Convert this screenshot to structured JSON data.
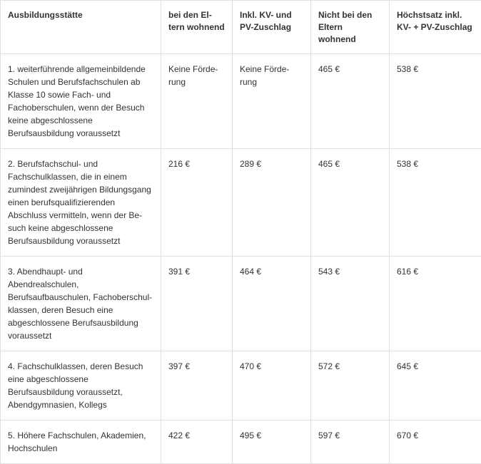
{
  "table": {
    "columns": [
      "Ausbildungsstätte",
      "bei den El­tern woh­nend",
      "Inkl. KV- und PV-Zuschlag",
      "Nicht bei den Eltern wohnend",
      "Höchstsatz inkl. KV- + PV-Zuschlag"
    ],
    "rows": [
      [
        "1. weiterführende allgemeinbildende Schulen und Berufsfachschulen ab Klas­se 10 sowie Fach- und Fachoberschulen, wenn der Besuch keine abgeschlossene Berufsausbildung voraussetzt",
        "Keine Förde­rung",
        "Keine Förde­rung",
        "465 €",
        "538 €"
      ],
      [
        "2. Berufsfachschul- und Fachschulklas­sen, die in einem zumindest zweijährigen Bildungsgang einen berufsqualifizieren­den Abschluss vermitteln, wenn der Be­such keine abgeschlossene Berufsausbil­dung voraussetzt",
        "216 €",
        "289 €",
        "465 €",
        "538 €"
      ],
      [
        "3. Abendhaupt- und Abendrealschulen, Berufsaufbauschulen, Fachoberschul­klassen, deren Besuch eine abgeschlos­sene Berufsausbildung voraussetzt",
        "391 €",
        "464 €",
        "543 €",
        "616 €"
      ],
      [
        "4. Fachschulklassen, deren Besuch eine abgeschlossene Berufsausbildung vor­aussetzt, Abendgymnasien, Kollegs",
        "397 €",
        "470 €",
        "572 €",
        "645 €"
      ],
      [
        "5. Höhere Fachschulen, Akademien, Hochschulen",
        "422 €",
        "495 €",
        "597 €",
        "670 €"
      ]
    ]
  }
}
